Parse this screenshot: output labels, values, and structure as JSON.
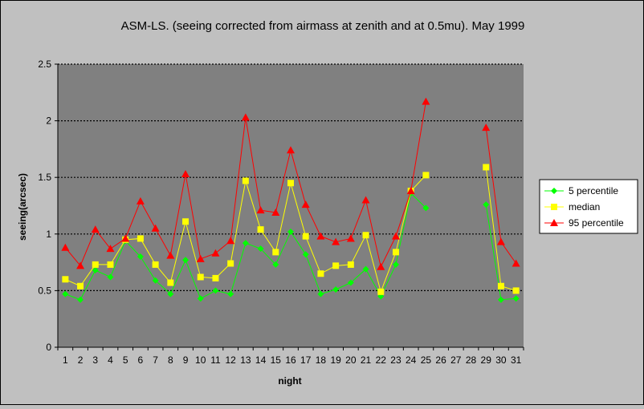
{
  "chart_data": {
    "type": "line",
    "title": "ASM-LS. (seeing corrected from airmass at zenith and at 0.5mu).  May 1999",
    "xlabel": "night",
    "ylabel": "seeing(arcsec)",
    "ylim": [
      0,
      2.5
    ],
    "yticks": [
      "0",
      "0.5",
      "1",
      "1.5",
      "2",
      "2.5"
    ],
    "ytick_values": [
      0,
      0.5,
      1,
      1.5,
      2,
      2.5
    ],
    "x": [
      1,
      2,
      3,
      4,
      5,
      6,
      7,
      8,
      9,
      10,
      11,
      12,
      13,
      14,
      15,
      16,
      17,
      18,
      19,
      20,
      21,
      22,
      23,
      24,
      25,
      26,
      27,
      28,
      29,
      30,
      31
    ],
    "grid": "horizontal dotted",
    "legend": "right",
    "colors": {
      "page_background": "#c0c0c0",
      "plot_background": "#808080",
      "gridline": "#000000"
    },
    "series": [
      {
        "name": "5 percentile",
        "color": "#00ff00",
        "marker": "diamond",
        "values": [
          0.47,
          0.42,
          0.68,
          0.62,
          0.94,
          0.8,
          0.59,
          0.47,
          0.77,
          0.43,
          0.5,
          0.47,
          0.92,
          0.87,
          0.73,
          1.02,
          0.82,
          0.47,
          0.51,
          0.57,
          0.69,
          0.45,
          0.73,
          1.36,
          1.23,
          null,
          null,
          null,
          1.26,
          0.42,
          0.43
        ]
      },
      {
        "name": "median",
        "color": "#ffff00",
        "marker": "square",
        "values": [
          0.6,
          0.54,
          0.73,
          0.73,
          0.95,
          0.96,
          0.73,
          0.57,
          1.11,
          0.62,
          0.61,
          0.74,
          1.47,
          1.04,
          0.84,
          1.45,
          0.98,
          0.65,
          0.72,
          0.73,
          0.99,
          0.49,
          0.84,
          1.38,
          1.52,
          null,
          null,
          null,
          1.59,
          0.54,
          0.5
        ]
      },
      {
        "name": "95 percentile",
        "color": "#ff0000",
        "marker": "triangle",
        "values": [
          0.88,
          0.72,
          1.04,
          0.87,
          0.96,
          1.29,
          1.05,
          0.81,
          1.53,
          0.78,
          0.83,
          0.94,
          2.03,
          1.21,
          1.19,
          1.74,
          1.26,
          0.98,
          0.93,
          0.96,
          1.3,
          0.71,
          0.98,
          1.38,
          2.17,
          null,
          null,
          null,
          1.94,
          0.93,
          0.74
        ]
      }
    ]
  }
}
